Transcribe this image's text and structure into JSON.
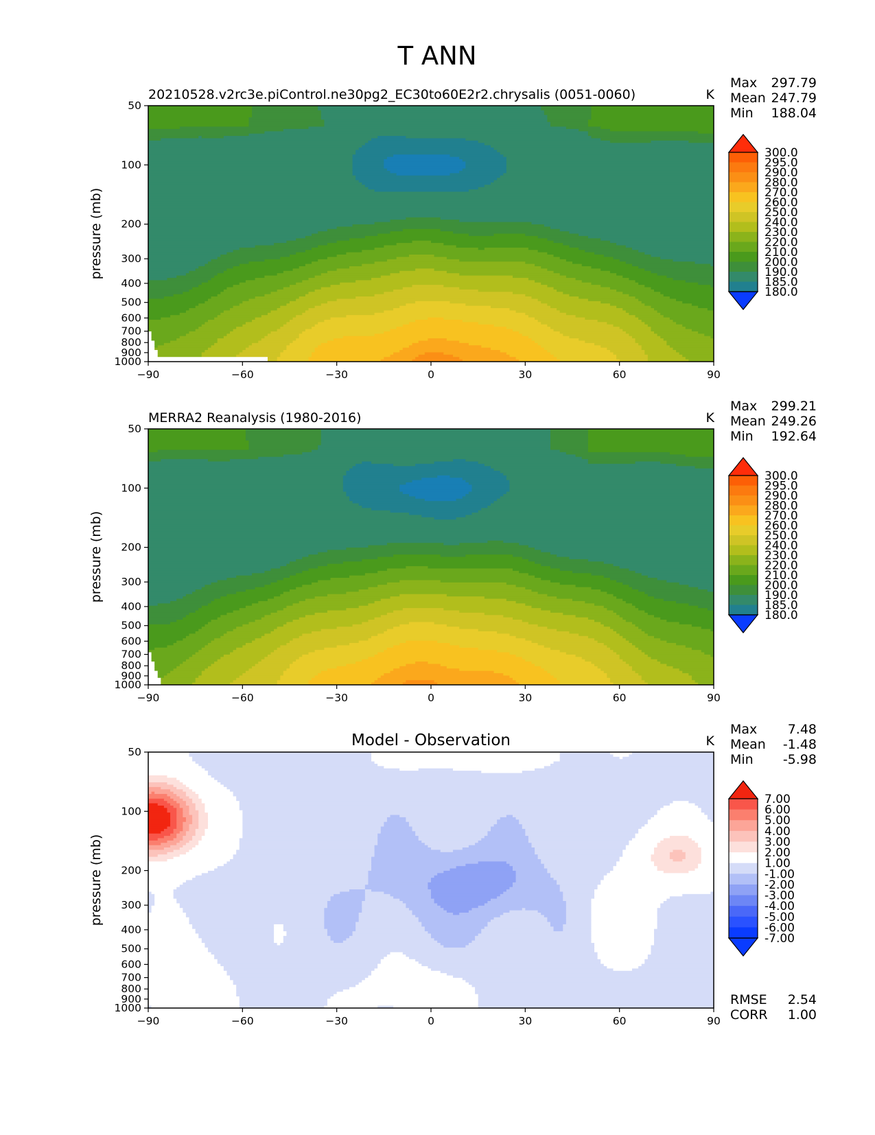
{
  "figure": {
    "title": "T ANN"
  },
  "colors": {
    "abs_levels": [
      "#0a3cff",
      "#1060e8",
      "#187fb5",
      "#21808f",
      "#338a6a",
      "#3e8f3a",
      "#4a9a1c",
      "#6aa81c",
      "#8bb31b",
      "#b2be1c",
      "#cfc425",
      "#e8cc2a",
      "#f8c220",
      "#fba81c",
      "#fb8f15",
      "#fc7a0f",
      "#fd5f06",
      "#ff2d0a"
    ],
    "diff_levels": [
      "#0a3cff",
      "#2a52ff",
      "#4a68f8",
      "#6d86f5",
      "#8fa2f5",
      "#b2c0f7",
      "#d5dcf8",
      "#ffffff",
      "#fde0dc",
      "#fcc3bb",
      "#fca598",
      "#fb7f6e",
      "#f9564a",
      "#f22510"
    ]
  },
  "chart_data": [
    {
      "type": "heatmap",
      "title": "20210528.v2rc3e.piControl.ne30pg2_EC30to60E2r2.chrysalis (0051-0060)",
      "units": "K",
      "xlabel": "",
      "ylabel": "pressure (mb)",
      "x_ticks": [
        -90,
        -60,
        -30,
        0,
        30,
        60,
        90
      ],
      "y_ticks": [
        50,
        100,
        200,
        300,
        400,
        500,
        600,
        700,
        800,
        900,
        1000
      ],
      "xlim": [
        -90,
        90
      ],
      "ylim": [
        1000,
        50
      ],
      "stats": {
        "Max": "297.79",
        "Mean": "247.79",
        "Min": "188.04"
      },
      "colorbar": [
        "300.0",
        "295.0",
        "290.0",
        "280.0",
        "270.0",
        "260.0",
        "250.0",
        "240.0",
        "230.0",
        "220.0",
        "210.0",
        "200.0",
        "190.0",
        "185.0",
        "180.0"
      ]
    },
    {
      "type": "heatmap",
      "title": "MERRA2 Reanalysis (1980-2016)",
      "units": "K",
      "xlabel": "",
      "ylabel": "pressure (mb)",
      "x_ticks": [
        -90,
        -60,
        -30,
        0,
        30,
        60,
        90
      ],
      "y_ticks": [
        50,
        100,
        200,
        300,
        400,
        500,
        600,
        700,
        800,
        900,
        1000
      ],
      "xlim": [
        -90,
        90
      ],
      "ylim": [
        1000,
        50
      ],
      "stats": {
        "Max": "299.21",
        "Mean": "249.26",
        "Min": "192.64"
      },
      "colorbar": [
        "300.0",
        "295.0",
        "290.0",
        "280.0",
        "270.0",
        "260.0",
        "250.0",
        "240.0",
        "230.0",
        "220.0",
        "210.0",
        "200.0",
        "190.0",
        "185.0",
        "180.0"
      ]
    },
    {
      "type": "heatmap",
      "title": "Model - Observation",
      "units": "K",
      "xlabel": "",
      "ylabel": "pressure (mb)",
      "x_ticks": [
        -90,
        -60,
        -30,
        0,
        30,
        60,
        90
      ],
      "y_ticks": [
        50,
        100,
        200,
        300,
        400,
        500,
        600,
        700,
        800,
        900,
        1000
      ],
      "xlim": [
        -90,
        90
      ],
      "ylim": [
        1000,
        50
      ],
      "stats": {
        "Max": "7.48",
        "Mean": "-1.48",
        "Min": "-5.98"
      },
      "extra_stats": {
        "RMSE": "2.54",
        "CORR": "1.00"
      },
      "colorbar": [
        "7.00",
        "6.00",
        "5.00",
        "4.00",
        "3.00",
        "2.00",
        "1.00",
        "-1.00",
        "-2.00",
        "-3.00",
        "-4.00",
        "-5.00",
        "-6.00",
        "-7.00"
      ]
    }
  ]
}
